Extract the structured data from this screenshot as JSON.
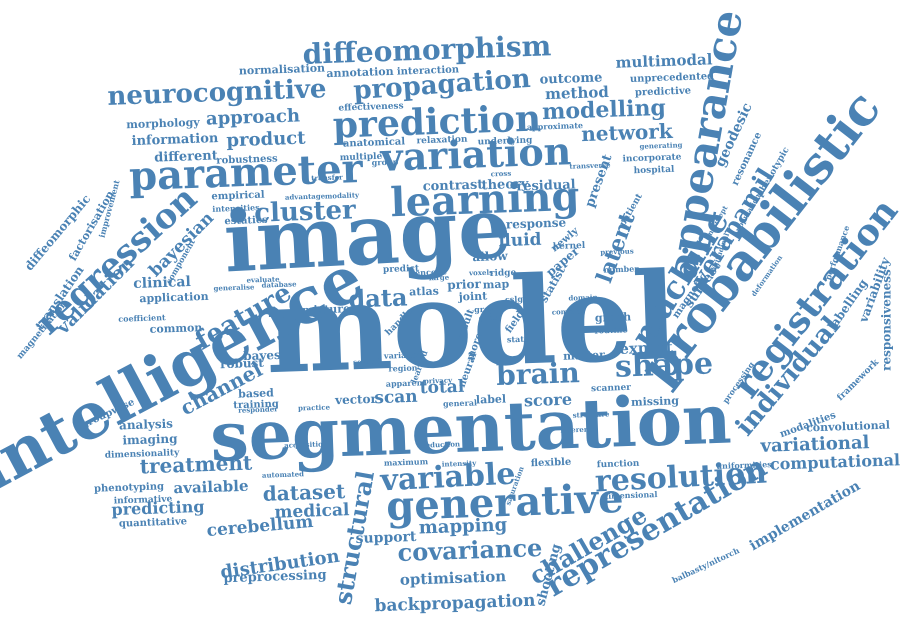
{
  "accent_color": "#4a82b4",
  "words": [
    {
      "text": "model"
    },
    {
      "text": "segmentation"
    },
    {
      "text": "image"
    },
    {
      "text": "intelligence"
    },
    {
      "text": "probabilistic"
    },
    {
      "text": "appearance"
    },
    {
      "text": "registration"
    },
    {
      "text": "learning"
    },
    {
      "text": "parameter"
    },
    {
      "text": "variation"
    },
    {
      "text": "prediction"
    },
    {
      "text": "generative"
    },
    {
      "text": "regression"
    },
    {
      "text": "resolution"
    },
    {
      "text": "variable"
    },
    {
      "text": "representation"
    },
    {
      "text": "diffeomorphism"
    },
    {
      "text": "propagation"
    },
    {
      "text": "neurocognitive"
    },
    {
      "text": "shape"
    },
    {
      "text": "brain"
    },
    {
      "text": "machine"
    },
    {
      "text": "covariance"
    },
    {
      "text": "structural"
    },
    {
      "text": "verapamil"
    },
    {
      "text": "challenge"
    },
    {
      "text": "feature"
    },
    {
      "text": "data"
    },
    {
      "text": "cluster"
    },
    {
      "text": "individual"
    },
    {
      "text": "modelling"
    },
    {
      "text": "network"
    },
    {
      "text": "treatment"
    },
    {
      "text": "dataset"
    },
    {
      "text": "channel"
    },
    {
      "text": "mapping"
    },
    {
      "text": "latent"
    },
    {
      "text": "distribution"
    },
    {
      "text": "cerebellum"
    },
    {
      "text": "medical"
    },
    {
      "text": "variational"
    },
    {
      "text": "computational"
    },
    {
      "text": "backpropagation"
    },
    {
      "text": "optimisation"
    },
    {
      "text": "validation"
    },
    {
      "text": "bayesian"
    },
    {
      "text": "product"
    },
    {
      "text": "approach"
    },
    {
      "text": "fluid"
    },
    {
      "text": "scan"
    },
    {
      "text": "total"
    },
    {
      "text": "score"
    },
    {
      "text": "expert"
    },
    {
      "text": "predicting"
    },
    {
      "text": "available"
    },
    {
      "text": "support"
    },
    {
      "text": "shooting"
    },
    {
      "text": "implementation"
    },
    {
      "text": "preprocessing"
    },
    {
      "text": "multimodal"
    },
    {
      "text": "outcome"
    },
    {
      "text": "method"
    },
    {
      "text": "information"
    },
    {
      "text": "different"
    },
    {
      "text": "morphology"
    },
    {
      "text": "normalisation"
    },
    {
      "text": "annotation"
    },
    {
      "text": "interaction"
    },
    {
      "text": "unprecedented"
    },
    {
      "text": "predictive"
    },
    {
      "text": "geodesic"
    },
    {
      "text": "magnetic"
    },
    {
      "text": "subject"
    },
    {
      "text": "responsiveness"
    },
    {
      "text": "convolutional"
    },
    {
      "text": "modalities"
    },
    {
      "text": "labelling"
    },
    {
      "text": "variability"
    },
    {
      "text": "framework"
    },
    {
      "text": "contrast"
    },
    {
      "text": "theory"
    },
    {
      "text": "residual"
    },
    {
      "text": "present"
    },
    {
      "text": "response"
    },
    {
      "text": "clinical"
    },
    {
      "text": "application"
    },
    {
      "text": "common"
    },
    {
      "text": "robust"
    },
    {
      "text": "bayes"
    },
    {
      "text": "mixture"
    },
    {
      "text": "based"
    },
    {
      "text": "training"
    },
    {
      "text": "vector"
    },
    {
      "text": "analysis"
    },
    {
      "text": "imaging"
    },
    {
      "text": "dimensionality"
    },
    {
      "text": "phenotyping"
    },
    {
      "text": "informative"
    },
    {
      "text": "quantitative"
    },
    {
      "text": "diffeomorphic"
    },
    {
      "text": "translation"
    },
    {
      "text": "magnetisation"
    },
    {
      "text": "groupwise"
    },
    {
      "text": "factorisation"
    },
    {
      "text": "empirical"
    },
    {
      "text": "intensities"
    },
    {
      "text": "estatics"
    },
    {
      "text": "robustness"
    },
    {
      "text": "anatomical"
    },
    {
      "text": "multiple"
    },
    {
      "text": "effectiveness"
    },
    {
      "text": "relaxation"
    },
    {
      "text": "underlying"
    },
    {
      "text": "approximate"
    },
    {
      "text": "incorporate"
    },
    {
      "text": "hospital"
    },
    {
      "text": "resonance"
    },
    {
      "text": "phenotypic"
    },
    {
      "text": "patient"
    },
    {
      "text": "longitudinal"
    },
    {
      "text": "kernel"
    },
    {
      "text": "previous"
    },
    {
      "text": "number"
    },
    {
      "text": "allow"
    },
    {
      "text": "ridge"
    },
    {
      "text": "paper"
    },
    {
      "text": "newly"
    },
    {
      "text": "prior"
    },
    {
      "text": "atlas"
    },
    {
      "text": "joint"
    },
    {
      "text": "grey"
    },
    {
      "text": "gaus"
    },
    {
      "text": "map"
    },
    {
      "text": "cslg"
    },
    {
      "text": "graph"
    },
    {
      "text": "field"
    },
    {
      "text": "state"
    },
    {
      "text": "routine"
    },
    {
      "text": "matter"
    },
    {
      "text": "scanner"
    },
    {
      "text": "missing"
    },
    {
      "text": "label"
    },
    {
      "text": "general"
    },
    {
      "text": "maximum"
    },
    {
      "text": "flexible"
    },
    {
      "text": "function"
    },
    {
      "text": "uniformities"
    },
    {
      "text": "dimensional"
    },
    {
      "text": "balbasty/nitorch"
    },
    {
      "text": "predict"
    },
    {
      "text": "encode"
    },
    {
      "text": "handle"
    },
    {
      "text": "result"
    },
    {
      "text": "more"
    },
    {
      "text": "neural"
    },
    {
      "text": "variance"
    },
    {
      "text": "acquisition"
    },
    {
      "text": "automated"
    },
    {
      "text": "reduction"
    },
    {
      "text": "inference"
    },
    {
      "text": "intensity"
    },
    {
      "text": "saturation"
    },
    {
      "text": "processing"
    },
    {
      "text": "performance"
    },
    {
      "text": "statist"
    },
    {
      "text": "deformation"
    },
    {
      "text": "region"
    },
    {
      "text": "complex"
    },
    {
      "text": "domain"
    },
    {
      "text": "structure"
    },
    {
      "text": "component"
    },
    {
      "text": "improvement"
    },
    {
      "text": "coefficient"
    },
    {
      "text": "database"
    },
    {
      "text": "evaluate"
    },
    {
      "text": "generalise"
    },
    {
      "text": "advantage"
    },
    {
      "text": "modality"
    },
    {
      "text": "generating"
    },
    {
      "text": "transverse"
    },
    {
      "text": "cross"
    },
    {
      "text": "group"
    },
    {
      "text": "transfer"
    },
    {
      "text": "voxels"
    },
    {
      "text": "large"
    },
    {
      "text": "responder"
    },
    {
      "text": "practice"
    },
    {
      "text": "privacy"
    },
    {
      "text": "several"
    },
    {
      "text": "apparent"
    },
    {
      "text": "learned"
    },
    {
      "text": "intercept"
    },
    {
      "text": "population"
    }
  ]
}
